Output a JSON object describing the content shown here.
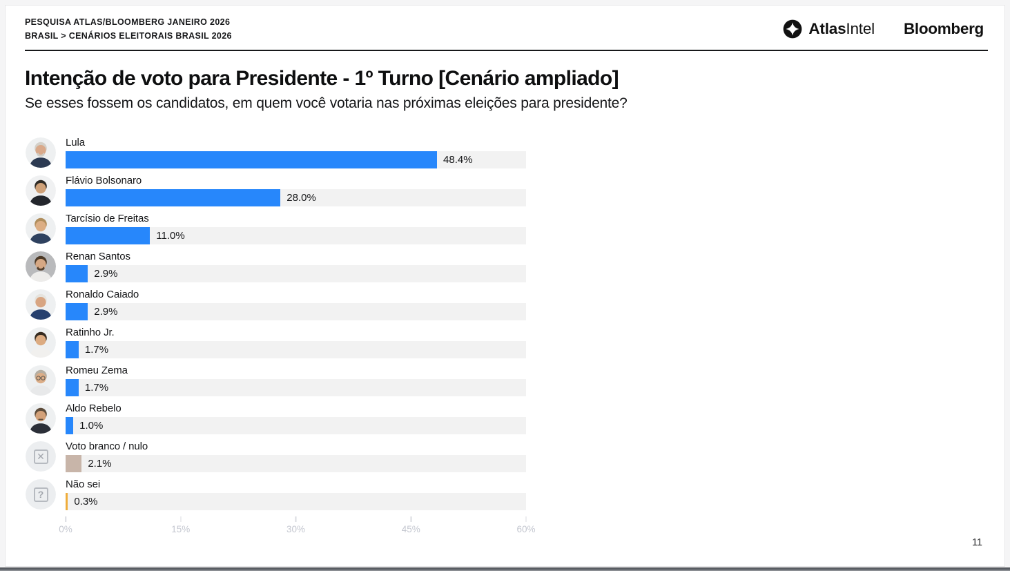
{
  "header": {
    "surtitle_line1": "PESQUISA ATLAS/BLOOMBERG JANEIRO 2026",
    "surtitle_line2": "BRASIL > CENÁRIOS ELEITORAIS BRASIL 2026"
  },
  "brand": {
    "atlasintel_bold": "Atlas",
    "atlasintel_light": "Intel",
    "bloomberg": "Bloomberg"
  },
  "title": "Intenção de voto para Presidente - 1º Turno [Cenário ampliado]",
  "subtitle": "Se esses fossem os candidatos, em quem você votaria nas próximas eleições para presidente?",
  "footer": {
    "page_number": "11"
  },
  "colors": {
    "bar_blue": "#2787FB",
    "bar_tan": "#C8B5A9",
    "bar_yellow": "#EFAD3B",
    "track_gray": "#F2F2F2",
    "axis_label_gray": "#C4C7D0"
  },
  "chart_data": {
    "type": "bar",
    "orientation": "horizontal",
    "title": "Intenção de voto para Presidente - 1º Turno [Cenário ampliado]",
    "xlabel": "",
    "ylabel": "",
    "xlim": [
      0,
      60
    ],
    "grid": false,
    "x_tick_values": [
      0,
      15,
      30,
      45,
      60
    ],
    "x_tick_labels": [
      "0%",
      "15%",
      "30%",
      "45%",
      "60%"
    ],
    "categories": [
      "Lula",
      "Flávio Bolsonaro",
      "Tarcísio de Freitas",
      "Renan Santos",
      "Ronaldo Caiado",
      "Ratinho Jr.",
      "Romeu Zema",
      "Aldo Rebelo",
      "Voto branco / nulo",
      "Não sei"
    ],
    "values": [
      48.4,
      28.0,
      11.0,
      2.9,
      2.9,
      1.7,
      1.7,
      1.0,
      2.1,
      0.3
    ],
    "rows": [
      {
        "label": "Lula",
        "value": 48.4,
        "value_label": "48.4%",
        "color": "#2787FB",
        "avatar": {
          "kind": "person",
          "name": "lula-avatar",
          "bg": "#eef0f1",
          "hair": "#d3d0c9",
          "skin": "#d9a98a",
          "suit": "#2c3a52",
          "beard": "#cfccc5"
        }
      },
      {
        "label": "Flávio Bolsonaro",
        "value": 28.0,
        "value_label": "28.0%",
        "color": "#2787FB",
        "avatar": {
          "kind": "person",
          "name": "flavio-bolsonaro-avatar",
          "bg": "#f0f1f2",
          "hair": "#2e2a24",
          "skin": "#cfa178",
          "suit": "#23262c"
        }
      },
      {
        "label": "Tarcísio de Freitas",
        "value": 11.0,
        "value_label": "11.0%",
        "color": "#2787FB",
        "avatar": {
          "kind": "person",
          "name": "tarcisio-de-freitas-avatar",
          "bg": "#eef0f1",
          "hair": "#b08e5d",
          "skin": "#dcae84",
          "suit": "#2e415f"
        }
      },
      {
        "label": "Renan Santos",
        "value": 2.9,
        "value_label": "2.9%",
        "color": "#2787FB",
        "avatar": {
          "kind": "person",
          "name": "renan-santos-avatar",
          "bg": "#b9babc",
          "hair": "#4c3a28",
          "skin": "#d6a884",
          "suit": "#edecea",
          "beard": "#55412e"
        }
      },
      {
        "label": "Ronaldo Caiado",
        "value": 2.9,
        "value_label": "2.9%",
        "color": "#2787FB",
        "avatar": {
          "kind": "person",
          "name": "ronaldo-caiado-avatar",
          "bg": "#eef0f1",
          "hair": "#e5e3de",
          "skin": "#d8a582",
          "suit": "#27406e"
        }
      },
      {
        "label": "Ratinho Jr.",
        "value": 1.7,
        "value_label": "1.7%",
        "color": "#2787FB",
        "avatar": {
          "kind": "person",
          "name": "ratinho-jr-avatar",
          "bg": "#eef0f1",
          "hair": "#362b20",
          "skin": "#dcab81",
          "suit": "#f1f0ee"
        }
      },
      {
        "label": "Romeu Zema",
        "value": 1.7,
        "value_label": "1.7%",
        "color": "#2787FB",
        "avatar": {
          "kind": "person",
          "name": "romeu-zema-avatar",
          "bg": "#eef0f1",
          "hair": "#b5aea2",
          "skin": "#dcae88",
          "suit": "#e8e9ea",
          "glasses": "#5a5650"
        }
      },
      {
        "label": "Aldo Rebelo",
        "value": 1.0,
        "value_label": "1.0%",
        "color": "#2787FB",
        "avatar": {
          "kind": "person",
          "name": "aldo-rebelo-avatar",
          "bg": "#eef0f1",
          "hair": "#5d4c3a",
          "skin": "#d3a179",
          "suit": "#2b2f38",
          "mustache": "#5d4c3a"
        }
      },
      {
        "label": "Voto branco / nulo",
        "value": 2.1,
        "value_label": "2.1%",
        "color": "#C8B5A9",
        "avatar": {
          "kind": "glyph",
          "name": "blank-null-vote-icon",
          "glyph": "✕"
        }
      },
      {
        "label": "Não sei",
        "value": 0.3,
        "value_label": "0.3%",
        "color": "#EFAD3B",
        "avatar": {
          "kind": "glyph",
          "name": "dont-know-icon",
          "glyph": "?"
        }
      }
    ]
  }
}
